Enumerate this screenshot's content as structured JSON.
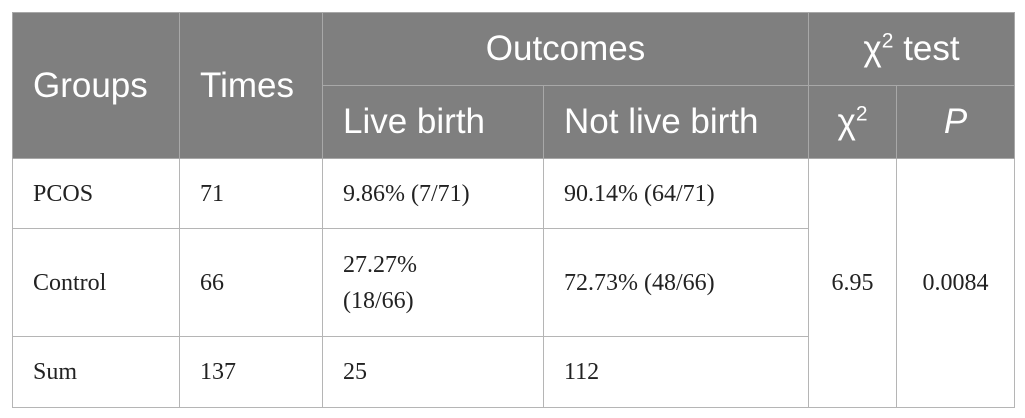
{
  "table": {
    "headers": {
      "groups": "Groups",
      "times": "Times",
      "outcomes": "Outcomes",
      "chi_test_symbol": "χ",
      "chi_test_sup": "2",
      "chi_test_label": " test",
      "live_birth": "Live birth",
      "not_live_birth": "Not live birth",
      "chi_symbol": "χ",
      "chi_sup": "2",
      "p": "P"
    },
    "rows": [
      {
        "group": "PCOS",
        "times": "71",
        "live_birth": "9.86% (7/71)",
        "not_live_birth": "90.14% (64/71)"
      },
      {
        "group": "Control",
        "times": "66",
        "live_birth_line1": "27.27%",
        "live_birth_line2": "(18/66)",
        "not_live_birth": "72.73% (48/66)"
      },
      {
        "group": "Sum",
        "times": "137",
        "live_birth": "25",
        "not_live_birth": "112"
      }
    ],
    "chi2": "6.95",
    "p_value": "0.0084"
  }
}
